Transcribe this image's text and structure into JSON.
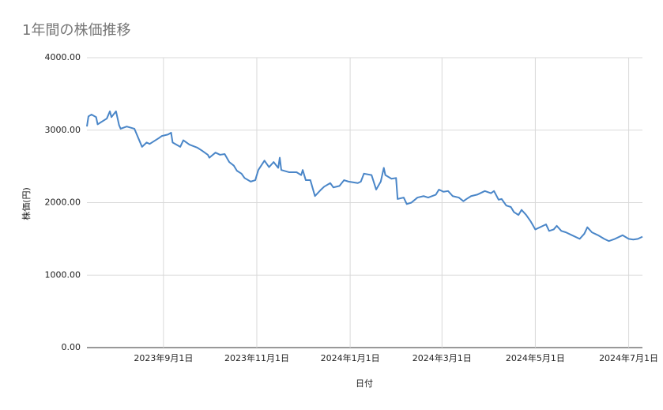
{
  "chart_data": {
    "type": "line",
    "title": "1年間の株価推移",
    "xlabel": "日付",
    "ylabel": "株価(円)",
    "x": [
      "2023-07-13",
      "2023-07-14",
      "2023-07-16",
      "2023-07-19",
      "2023-07-20",
      "2023-07-26",
      "2023-07-28",
      "2023-07-29",
      "2023-08-01",
      "2023-08-03",
      "2023-08-04",
      "2023-08-08",
      "2023-08-13",
      "2023-08-16",
      "2023-08-18",
      "2023-08-21",
      "2023-08-23",
      "2023-08-29",
      "2023-08-31",
      "2023-09-04",
      "2023-09-06",
      "2023-09-07",
      "2023-09-12",
      "2023-09-14",
      "2023-09-18",
      "2023-09-23",
      "2023-09-26",
      "2023-09-30",
      "2023-10-01",
      "2023-10-05",
      "2023-10-08",
      "2023-10-11",
      "2023-10-14",
      "2023-10-17",
      "2023-10-19",
      "2023-10-22",
      "2023-10-24",
      "2023-10-28",
      "2023-10-31",
      "2023-11-02",
      "2023-11-06",
      "2023-11-09",
      "2023-11-12",
      "2023-11-15",
      "2023-11-16",
      "2023-11-17",
      "2023-11-22",
      "2023-11-27",
      "2023-11-30",
      "2023-12-01",
      "2023-12-03",
      "2023-12-06",
      "2023-12-09",
      "2023-12-13",
      "2023-12-15",
      "2023-12-19",
      "2023-12-21",
      "2023-12-25",
      "2023-12-28",
      "2023-12-31",
      "2024-01-06",
      "2024-01-08",
      "2024-01-10",
      "2024-01-15",
      "2024-01-18",
      "2024-01-21",
      "2024-01-23",
      "2024-01-24",
      "2024-01-28",
      "2024-01-31",
      "2024-02-01",
      "2024-02-05",
      "2024-02-07",
      "2024-02-10",
      "2024-02-14",
      "2024-02-18",
      "2024-02-21",
      "2024-02-26",
      "2024-02-28",
      "2024-03-02",
      "2024-03-05",
      "2024-03-08",
      "2024-03-12",
      "2024-03-15",
      "2024-03-17",
      "2024-03-20",
      "2024-03-24",
      "2024-03-29",
      "2024-04-02",
      "2024-04-04",
      "2024-04-07",
      "2024-04-09",
      "2024-04-12",
      "2024-04-15",
      "2024-04-17",
      "2024-04-20",
      "2024-04-22",
      "2024-04-25",
      "2024-04-28",
      "2024-05-01",
      "2024-05-06",
      "2024-05-08",
      "2024-05-10",
      "2024-05-13",
      "2024-05-15",
      "2024-05-18",
      "2024-05-21",
      "2024-05-25",
      "2024-05-30",
      "2024-06-02",
      "2024-06-04",
      "2024-06-07",
      "2024-06-11",
      "2024-06-15",
      "2024-06-18",
      "2024-06-22",
      "2024-06-27",
      "2024-07-01",
      "2024-07-04",
      "2024-07-07",
      "2024-07-10"
    ],
    "series": [
      {
        "name": "株価",
        "color": "#4a86c8",
        "values": [
          3050,
          3190,
          3215,
          3180,
          3080,
          3160,
          3260,
          3180,
          3260,
          3070,
          3020,
          3050,
          3020,
          2870,
          2770,
          2830,
          2810,
          2890,
          2920,
          2940,
          2965,
          2830,
          2770,
          2860,
          2800,
          2760,
          2720,
          2660,
          2620,
          2690,
          2660,
          2670,
          2560,
          2510,
          2440,
          2400,
          2340,
          2290,
          2310,
          2450,
          2580,
          2490,
          2560,
          2480,
          2620,
          2450,
          2420,
          2420,
          2380,
          2450,
          2310,
          2310,
          2090,
          2180,
          2220,
          2270,
          2210,
          2230,
          2310,
          2290,
          2270,
          2290,
          2400,
          2380,
          2180,
          2290,
          2480,
          2380,
          2330,
          2340,
          2050,
          2070,
          1980,
          2000,
          2070,
          2090,
          2070,
          2110,
          2180,
          2150,
          2160,
          2090,
          2070,
          2020,
          2050,
          2090,
          2110,
          2160,
          2130,
          2160,
          2040,
          2050,
          1960,
          1940,
          1870,
          1830,
          1900,
          1830,
          1740,
          1630,
          1680,
          1700,
          1610,
          1630,
          1680,
          1610,
          1590,
          1550,
          1500,
          1570,
          1660,
          1590,
          1550,
          1500,
          1470,
          1500,
          1550,
          1500,
          1490,
          1500,
          1530
        ]
      }
    ],
    "xlim": [
      "2023-07-13",
      "2024-07-10"
    ],
    "xticks": [
      {
        "value": "2023-09-01",
        "label": "2023年9月1日"
      },
      {
        "value": "2023-11-01",
        "label": "2023年11月1日"
      },
      {
        "value": "2024-01-01",
        "label": "2024年1月1日"
      },
      {
        "value": "2024-03-01",
        "label": "2024年3月1日"
      },
      {
        "value": "2024-05-01",
        "label": "2024年5月1日"
      },
      {
        "value": "2024-07-01",
        "label": "2024年7月1日"
      }
    ],
    "ylim": [
      0,
      4000
    ],
    "yticks": [
      {
        "value": 0,
        "label": "0.00"
      },
      {
        "value": 1000,
        "label": "1000.00"
      },
      {
        "value": 2000,
        "label": "2000.00"
      },
      {
        "value": 3000,
        "label": "3000.00"
      },
      {
        "value": 4000,
        "label": "4000.00"
      }
    ],
    "grid": true
  }
}
